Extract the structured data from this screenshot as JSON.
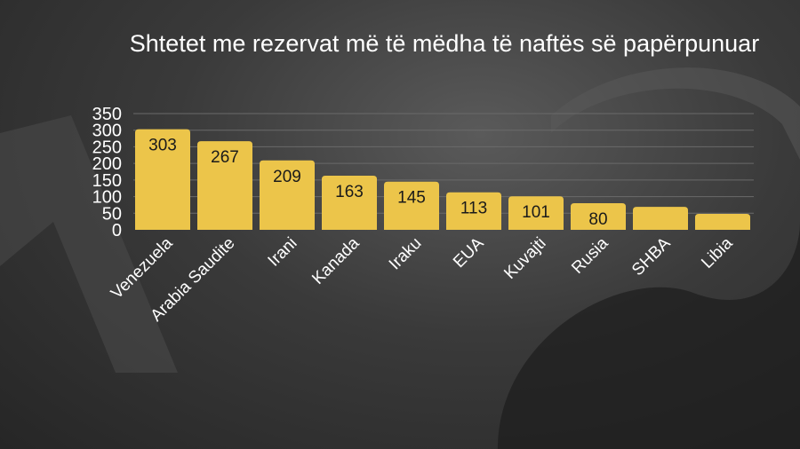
{
  "chart_data": {
    "type": "bar",
    "title": "Shtetet me rezervat më të mëdha të naftës së papërpunuar",
    "categories": [
      "Venezuela",
      "Arabia Saudite",
      "Irani",
      "Kanada",
      "Iraku",
      "EUA",
      "Kuvajti",
      "Rusia",
      "SHBA",
      "Libia"
    ],
    "values": [
      303,
      267,
      209,
      163,
      145,
      113,
      101,
      80,
      69,
      48
    ],
    "data_labels": [
      "303",
      "267",
      "209",
      "163",
      "145",
      "113",
      "101",
      "80",
      "",
      ""
    ],
    "ylim": [
      0,
      350
    ],
    "yticks": [
      0,
      50,
      100,
      150,
      200,
      250,
      300,
      350
    ],
    "grid": true,
    "xlabel": "",
    "ylabel": "",
    "colors": {
      "bar": "#ecc54a",
      "label": "#1a1a1a",
      "text": "#ffffff",
      "grid": "#6a6a6a"
    }
  }
}
